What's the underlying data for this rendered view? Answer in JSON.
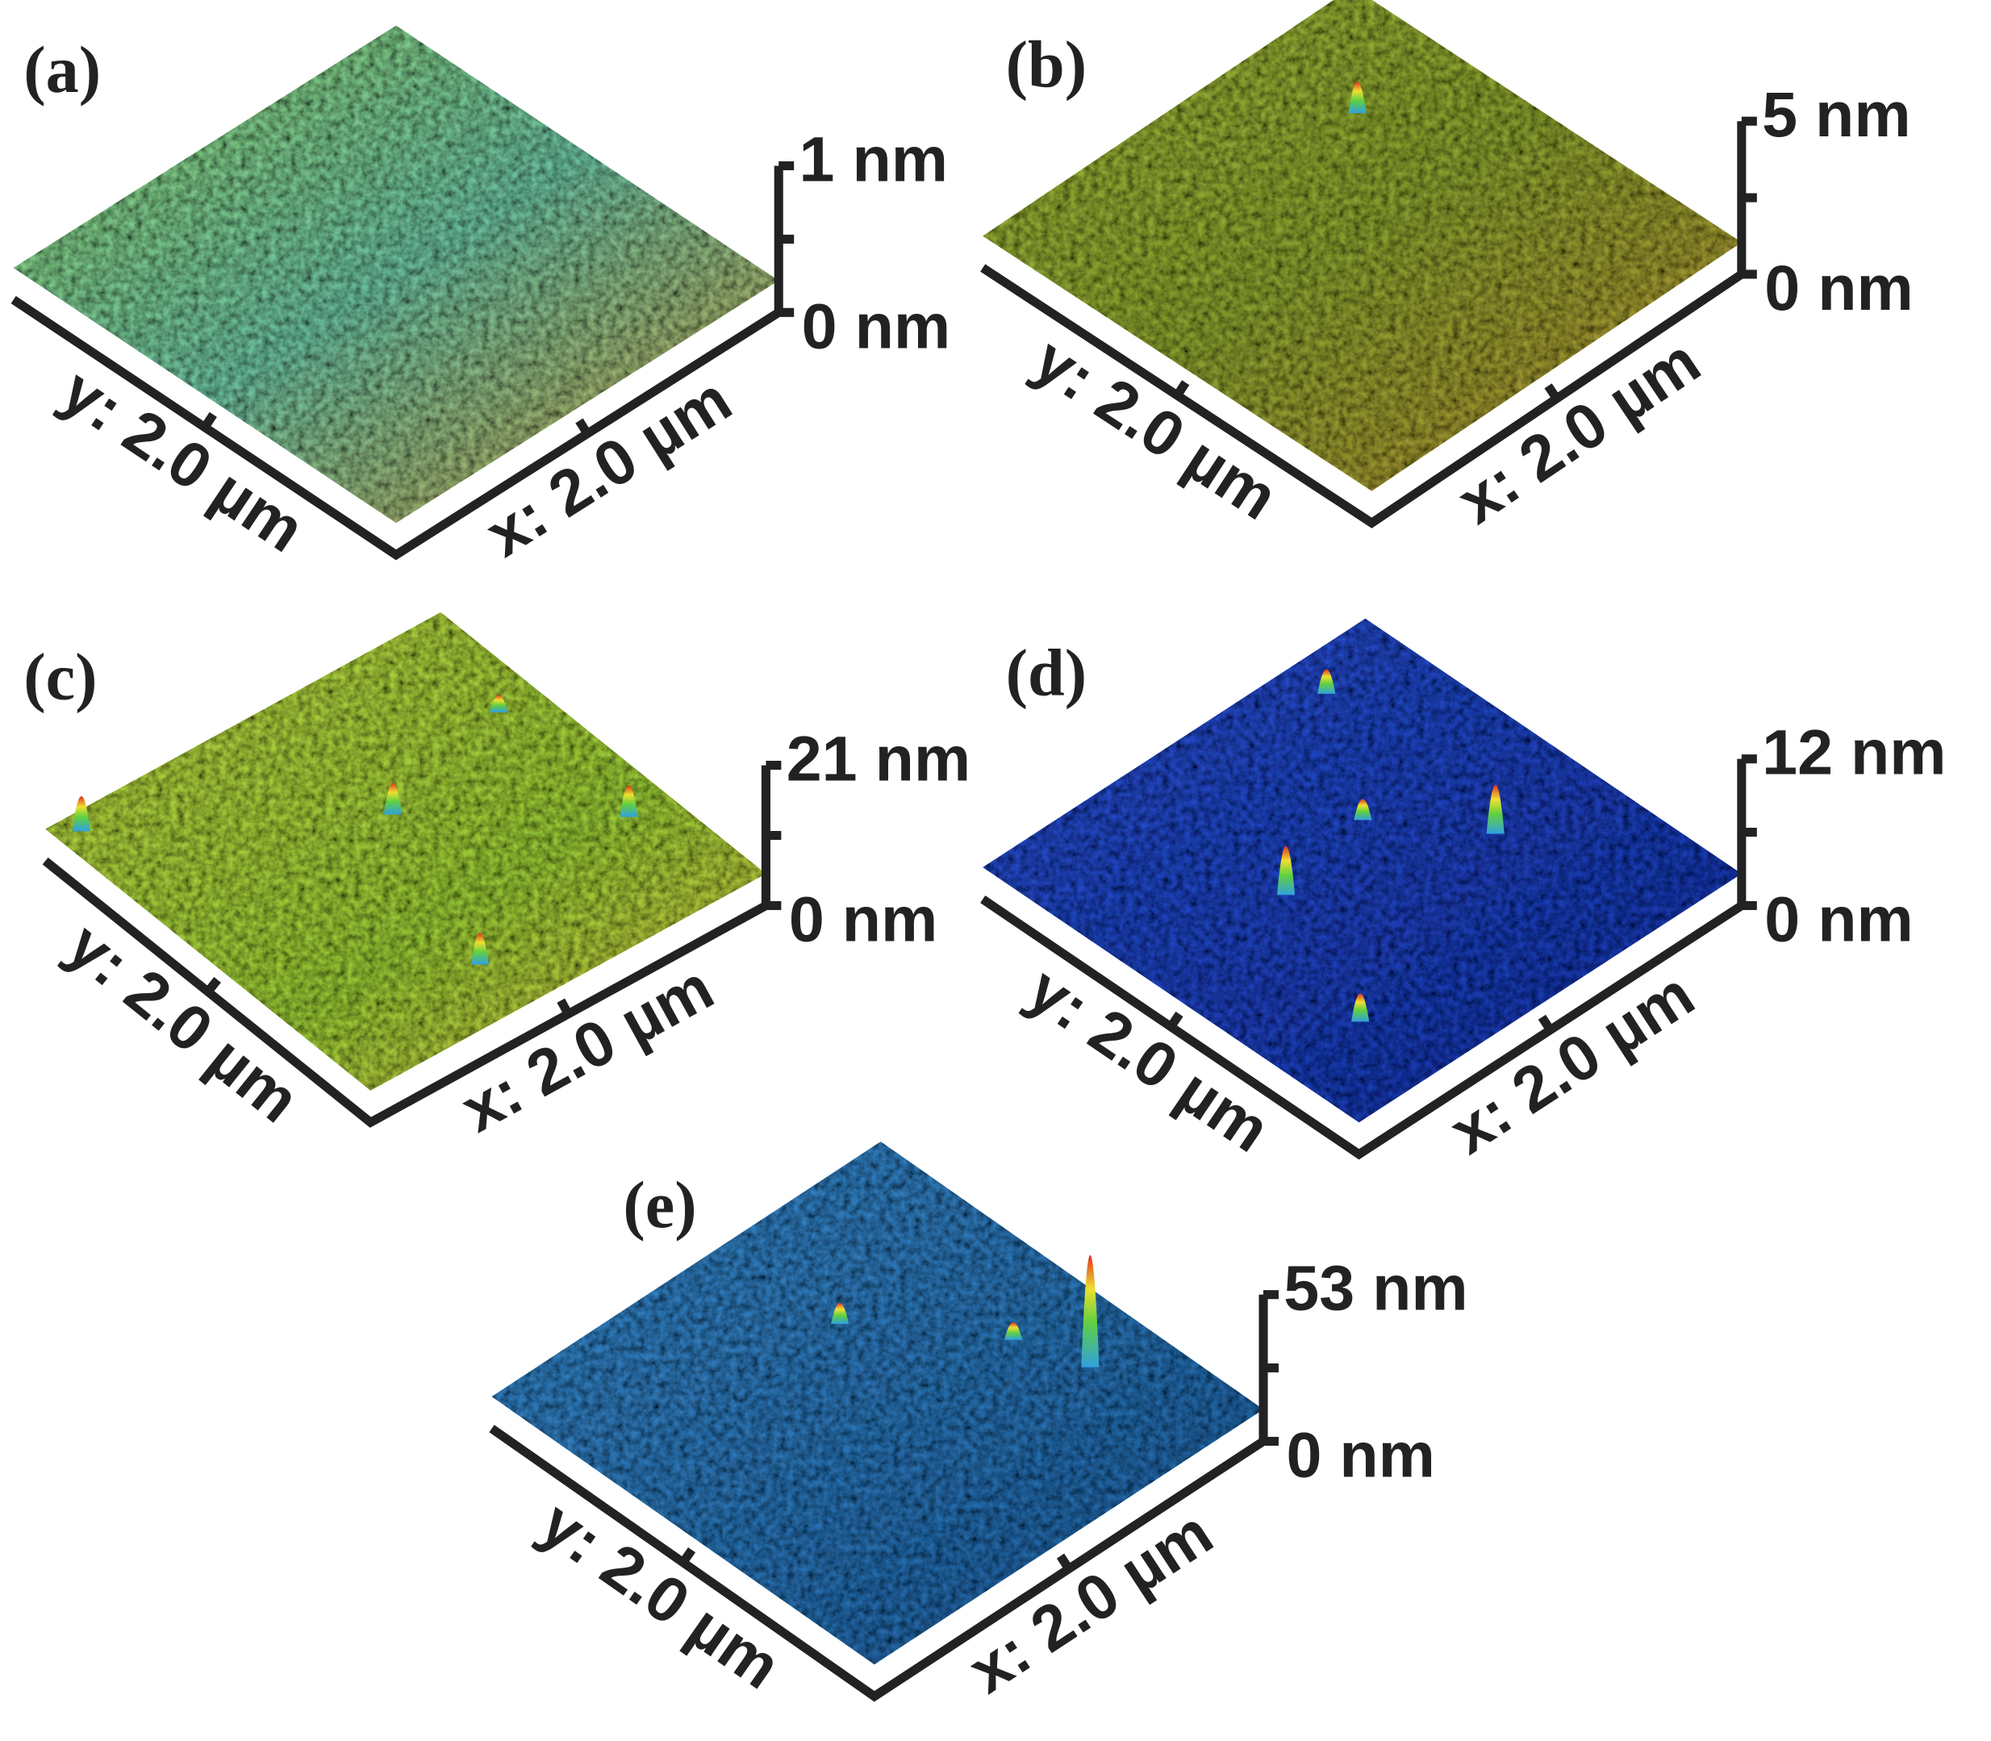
{
  "panels": [
    {
      "label": "(a)",
      "z_top": "1 nm",
      "z_bottom": "0 nm",
      "y_axis": "y: 2.0 µm",
      "x_axis": "x: 2.0 µm"
    },
    {
      "label": "(b)",
      "z_top": "5 nm",
      "z_bottom": "0 nm",
      "y_axis": "y: 2.0 µm",
      "x_axis": "x: 2.0 µm"
    },
    {
      "label": "(c)",
      "z_top": "21 nm",
      "z_bottom": "0 nm",
      "y_axis": "y: 2.0 µm",
      "x_axis": "x: 2.0 µm"
    },
    {
      "label": "(d)",
      "z_top": "12 nm",
      "z_bottom": "0 nm",
      "y_axis": "y: 2.0 µm",
      "x_axis": "x: 2.0 µm"
    },
    {
      "label": "(e)",
      "z_top": "53 nm",
      "z_bottom": "0 nm",
      "y_axis": "y: 2.0 µm",
      "x_axis": "x: 2.0 µm"
    }
  ]
}
